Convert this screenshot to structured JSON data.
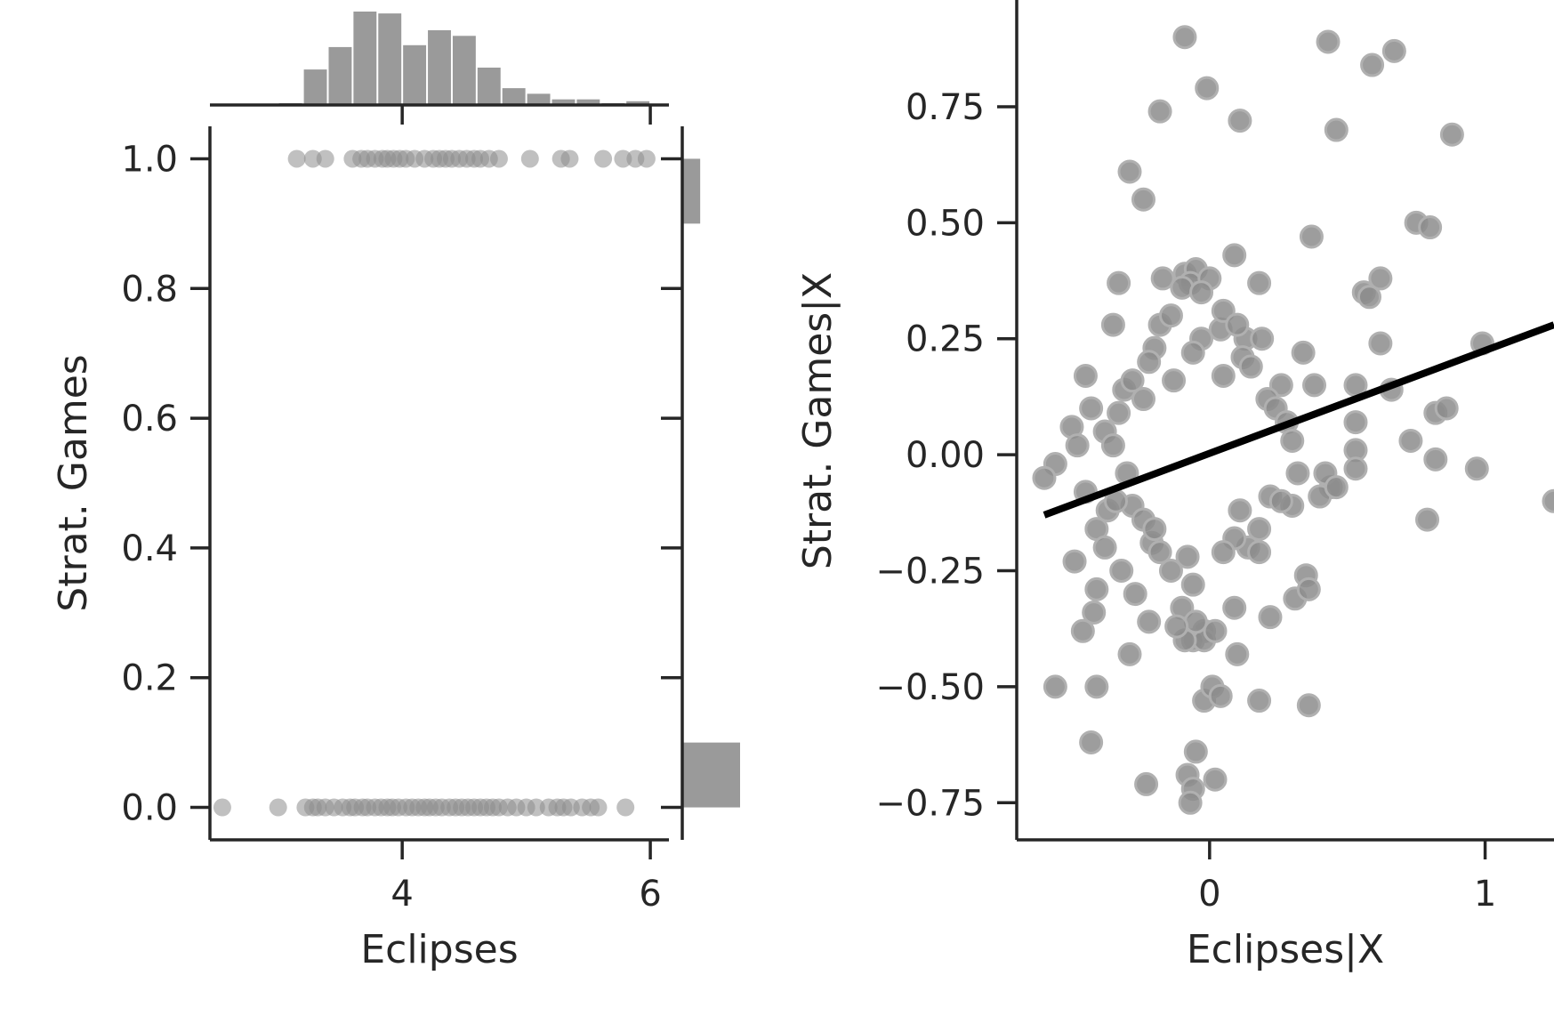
{
  "chart_data": [
    {
      "type": "scatter",
      "subtype": "joint-plot-with-marginal-histograms",
      "title": "",
      "xlabel": "Eclipses",
      "ylabel": "Strat. Games",
      "xlim": [
        2.45,
        6.15
      ],
      "ylim": [
        -0.05,
        1.05
      ],
      "xticks": [
        4,
        6
      ],
      "xtick_labels": [
        "4",
        "6"
      ],
      "yticks": [
        0.0,
        0.2,
        0.4,
        0.6,
        0.8,
        1.0
      ],
      "ytick_labels": [
        "0.0",
        "0.2",
        "0.4",
        "0.6",
        "0.8",
        "1.0"
      ],
      "grid": false,
      "point_color": "#8c8c8c",
      "hist_color": "#9a9a9a",
      "series": [
        {
          "values": [
            [
              3.15,
              1
            ],
            [
              3.28,
              1
            ],
            [
              3.38,
              1
            ],
            [
              3.6,
              1
            ],
            [
              3.67,
              1
            ],
            [
              3.72,
              1
            ],
            [
              3.78,
              1
            ],
            [
              3.84,
              1
            ],
            [
              3.88,
              1
            ],
            [
              3.93,
              1
            ],
            [
              3.98,
              1
            ],
            [
              4.03,
              1
            ],
            [
              4.1,
              1
            ],
            [
              4.18,
              1
            ],
            [
              4.25,
              1
            ],
            [
              4.3,
              1
            ],
            [
              4.35,
              1
            ],
            [
              4.4,
              1
            ],
            [
              4.46,
              1
            ],
            [
              4.52,
              1
            ],
            [
              4.58,
              1
            ],
            [
              4.63,
              1
            ],
            [
              4.7,
              1
            ],
            [
              4.78,
              1
            ],
            [
              5.03,
              1
            ],
            [
              5.28,
              1
            ],
            [
              5.35,
              1
            ],
            [
              5.62,
              1
            ],
            [
              5.78,
              1
            ],
            [
              5.88,
              1
            ],
            [
              5.97,
              1
            ],
            [
              2.55,
              0
            ],
            [
              3.0,
              0
            ],
            [
              3.22,
              0
            ],
            [
              3.28,
              0
            ],
            [
              3.32,
              0
            ],
            [
              3.38,
              0
            ],
            [
              3.45,
              0
            ],
            [
              3.52,
              0
            ],
            [
              3.58,
              0
            ],
            [
              3.62,
              0
            ],
            [
              3.68,
              0
            ],
            [
              3.72,
              0
            ],
            [
              3.78,
              0
            ],
            [
              3.83,
              0
            ],
            [
              3.88,
              0
            ],
            [
              3.92,
              0
            ],
            [
              3.97,
              0
            ],
            [
              4.03,
              0
            ],
            [
              4.08,
              0
            ],
            [
              4.13,
              0
            ],
            [
              4.18,
              0
            ],
            [
              4.22,
              0
            ],
            [
              4.27,
              0
            ],
            [
              4.32,
              0
            ],
            [
              4.38,
              0
            ],
            [
              4.43,
              0
            ],
            [
              4.48,
              0
            ],
            [
              4.53,
              0
            ],
            [
              4.58,
              0
            ],
            [
              4.63,
              0
            ],
            [
              4.68,
              0
            ],
            [
              4.73,
              0
            ],
            [
              4.78,
              0
            ],
            [
              4.85,
              0
            ],
            [
              4.92,
              0
            ],
            [
              5.0,
              0
            ],
            [
              5.08,
              0
            ],
            [
              5.18,
              0
            ],
            [
              5.25,
              0
            ],
            [
              5.3,
              0
            ],
            [
              5.36,
              0
            ],
            [
              5.45,
              0
            ],
            [
              5.52,
              0
            ],
            [
              5.58,
              0
            ],
            [
              5.8,
              0
            ]
          ]
        }
      ],
      "x_hist": {
        "bins": [
          [
            3.0,
            3.2
          ],
          [
            3.2,
            3.4
          ],
          [
            3.4,
            3.6
          ],
          [
            3.6,
            3.8
          ],
          [
            3.8,
            4.0
          ],
          [
            4.0,
            4.2
          ],
          [
            4.2,
            4.4
          ],
          [
            4.4,
            4.6
          ],
          [
            4.6,
            4.8
          ],
          [
            4.8,
            5.0
          ],
          [
            5.0,
            5.2
          ],
          [
            5.2,
            5.4
          ],
          [
            5.4,
            5.6
          ],
          [
            5.6,
            5.8
          ],
          [
            5.8,
            6.0
          ]
        ],
        "counts": [
          2,
          38,
          62,
          100,
          98,
          64,
          80,
          74,
          40,
          18,
          12,
          6,
          6,
          2,
          4
        ]
      },
      "y_hist": {
        "bins": [
          [
            0.0,
            0.1
          ],
          [
            0.9,
            1.0
          ]
        ],
        "counts": [
          100,
          31
        ]
      }
    },
    {
      "type": "scatter",
      "subtype": "partial-regression-plot",
      "title": "",
      "xlabel": "Eclipses|X",
      "ylabel": "Strat. Games|X",
      "xlim": [
        -0.7,
        1.25
      ],
      "ylim": [
        -0.83,
        0.98
      ],
      "xticks": [
        0,
        1
      ],
      "xtick_labels": [
        "0",
        "1"
      ],
      "yticks": [
        -0.75,
        -0.5,
        -0.25,
        0.0,
        0.25,
        0.5,
        0.75
      ],
      "ytick_labels": [
        "−0.75",
        "−0.50",
        "−0.25",
        "0.00",
        "0.25",
        "0.50",
        "0.75"
      ],
      "grid": false,
      "point_color": "#8c8c8c",
      "line_color": "#000000",
      "regression_line": {
        "x": [
          -0.6,
          1.25
        ],
        "y": [
          -0.13,
          0.28
        ]
      },
      "series": [
        {
          "values": [
            [
              -0.09,
              0.9
            ],
            [
              -0.01,
              0.79
            ],
            [
              0.43,
              0.89
            ],
            [
              0.67,
              0.87
            ],
            [
              0.59,
              0.84
            ],
            [
              -0.18,
              0.74
            ],
            [
              0.11,
              0.72
            ],
            [
              0.46,
              0.7
            ],
            [
              0.88,
              0.69
            ],
            [
              -0.29,
              0.61
            ],
            [
              -0.24,
              0.55
            ],
            [
              0.75,
              0.5
            ],
            [
              0.8,
              0.49
            ],
            [
              0.37,
              0.47
            ],
            [
              0.09,
              0.43
            ],
            [
              -0.09,
              0.39
            ],
            [
              -0.05,
              0.4
            ],
            [
              -0.17,
              0.38
            ],
            [
              0.18,
              0.37
            ],
            [
              -0.07,
              0.37
            ],
            [
              -0.33,
              0.37
            ],
            [
              0.62,
              0.38
            ],
            [
              0.56,
              0.35
            ],
            [
              0.58,
              0.34
            ],
            [
              -0.35,
              0.28
            ],
            [
              -0.18,
              0.28
            ],
            [
              -0.03,
              0.25
            ],
            [
              0.04,
              0.27
            ],
            [
              0.13,
              0.25
            ],
            [
              0.19,
              0.25
            ],
            [
              0.62,
              0.24
            ],
            [
              0.99,
              0.24
            ],
            [
              -0.2,
              0.23
            ],
            [
              -0.06,
              0.22
            ],
            [
              0.34,
              0.22
            ],
            [
              -0.45,
              0.17
            ],
            [
              -0.31,
              0.14
            ],
            [
              0.26,
              0.15
            ],
            [
              0.53,
              0.15
            ],
            [
              0.66,
              0.14
            ],
            [
              0.38,
              0.15
            ],
            [
              -0.43,
              0.1
            ],
            [
              -0.24,
              0.12
            ],
            [
              0.21,
              0.12
            ],
            [
              0.82,
              0.09
            ],
            [
              0.86,
              0.1
            ],
            [
              -0.5,
              0.06
            ],
            [
              -0.38,
              0.05
            ],
            [
              0.53,
              0.07
            ],
            [
              0.73,
              0.03
            ],
            [
              -0.56,
              -0.02
            ],
            [
              -0.6,
              -0.05
            ],
            [
              0.53,
              0.01
            ],
            [
              0.82,
              -0.01
            ],
            [
              0.97,
              -0.03
            ],
            [
              1.25,
              -0.1
            ],
            [
              -0.45,
              -0.08
            ],
            [
              0.44,
              -0.07
            ],
            [
              0.53,
              -0.03
            ],
            [
              0.79,
              -0.14
            ],
            [
              -0.37,
              -0.12
            ],
            [
              -0.28,
              -0.11
            ],
            [
              0.3,
              -0.11
            ],
            [
              0.4,
              -0.09
            ],
            [
              -0.41,
              -0.16
            ],
            [
              -0.21,
              -0.19
            ],
            [
              -0.49,
              -0.23
            ],
            [
              -0.38,
              -0.2
            ],
            [
              0.14,
              -0.2
            ],
            [
              0.18,
              -0.21
            ],
            [
              0.35,
              -0.26
            ],
            [
              -0.32,
              -0.25
            ],
            [
              -0.41,
              -0.29
            ],
            [
              -0.27,
              -0.3
            ],
            [
              -0.14,
              -0.25
            ],
            [
              -0.06,
              -0.28
            ],
            [
              -0.42,
              -0.34
            ],
            [
              -0.22,
              -0.36
            ],
            [
              0.31,
              -0.31
            ],
            [
              0.36,
              -0.29
            ],
            [
              0.22,
              -0.35
            ],
            [
              0.09,
              -0.33
            ],
            [
              -0.1,
              -0.33
            ],
            [
              -0.46,
              -0.38
            ],
            [
              -0.02,
              -0.38
            ],
            [
              -0.06,
              -0.4
            ],
            [
              0.1,
              -0.43
            ],
            [
              -0.29,
              -0.43
            ],
            [
              -0.56,
              -0.5
            ],
            [
              -0.41,
              -0.5
            ],
            [
              -0.02,
              -0.53
            ],
            [
              0.01,
              -0.5
            ],
            [
              0.04,
              -0.52
            ],
            [
              0.18,
              -0.53
            ],
            [
              0.36,
              -0.54
            ],
            [
              -0.43,
              -0.62
            ],
            [
              -0.05,
              -0.64
            ],
            [
              -0.08,
              -0.69
            ],
            [
              -0.06,
              -0.72
            ],
            [
              0.02,
              -0.7
            ],
            [
              -0.23,
              -0.71
            ],
            [
              -0.07,
              -0.75
            ],
            [
              -0.02,
              -0.4
            ],
            [
              -0.09,
              -0.4
            ],
            [
              0.02,
              -0.38
            ],
            [
              -0.05,
              -0.36
            ],
            [
              -0.12,
              -0.37
            ],
            [
              0.0,
              0.38
            ],
            [
              -0.1,
              0.36
            ],
            [
              -0.03,
              0.35
            ],
            [
              0.05,
              0.31
            ],
            [
              -0.14,
              0.3
            ],
            [
              0.1,
              0.28
            ],
            [
              -0.22,
              0.2
            ],
            [
              0.12,
              0.21
            ],
            [
              0.15,
              0.19
            ],
            [
              -0.28,
              0.16
            ],
            [
              0.05,
              0.17
            ],
            [
              -0.13,
              0.16
            ],
            [
              0.24,
              0.1
            ],
            [
              0.28,
              0.07
            ],
            [
              -0.33,
              0.09
            ],
            [
              -0.35,
              0.02
            ],
            [
              -0.48,
              0.02
            ],
            [
              0.3,
              0.03
            ],
            [
              0.32,
              -0.04
            ],
            [
              0.42,
              -0.04
            ],
            [
              0.46,
              -0.07
            ],
            [
              -0.3,
              -0.04
            ],
            [
              -0.34,
              -0.1
            ],
            [
              0.22,
              -0.09
            ],
            [
              0.26,
              -0.1
            ],
            [
              -0.24,
              -0.14
            ],
            [
              0.18,
              -0.16
            ],
            [
              -0.18,
              -0.21
            ],
            [
              0.09,
              -0.18
            ],
            [
              -0.08,
              -0.22
            ],
            [
              0.05,
              -0.21
            ],
            [
              -0.2,
              -0.16
            ],
            [
              0.11,
              -0.12
            ]
          ]
        }
      ]
    }
  ]
}
